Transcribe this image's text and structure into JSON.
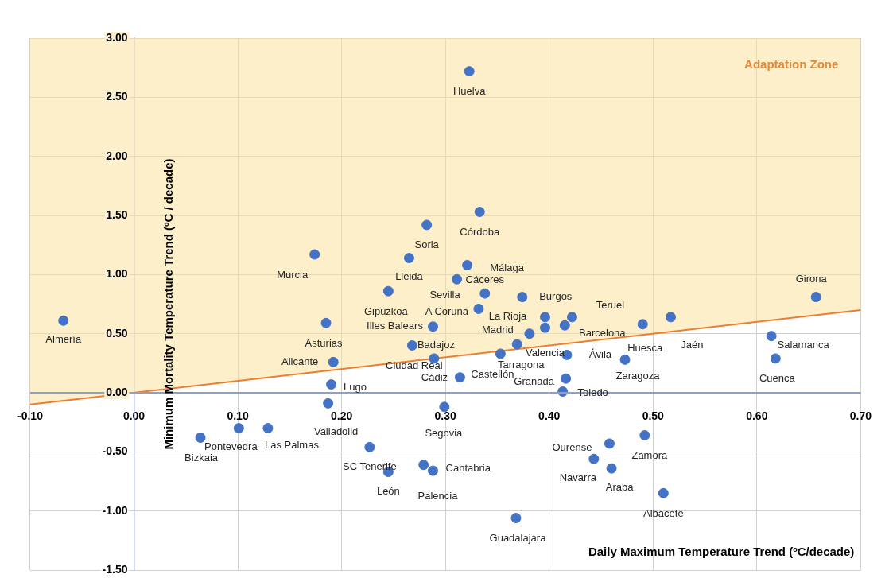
{
  "chart_data": {
    "type": "scatter",
    "xlabel": "Daily Maximum Temperature Trend (ºC/decade)",
    "ylabel": "Minimum Mortality Temperature Trend (ºC / decade)",
    "xlim": [
      -0.1,
      0.7
    ],
    "ylim": [
      -1.5,
      3.0
    ],
    "xticks": [
      {
        "value": -0.1,
        "label": "-0.10"
      },
      {
        "value": 0,
        "label": "0.00"
      },
      {
        "value": 0.1,
        "label": "0.10"
      },
      {
        "value": 0.2,
        "label": "0.20"
      },
      {
        "value": 0.3,
        "label": "0.30"
      },
      {
        "value": 0.4,
        "label": "0.40"
      },
      {
        "value": 0.5,
        "label": "0.50"
      },
      {
        "value": 0.6,
        "label": "0.60"
      },
      {
        "value": 0.7,
        "label": "0.70"
      }
    ],
    "yticks": [
      {
        "value": -1.5,
        "label": "-1.50"
      },
      {
        "value": -1,
        "label": "-1.00"
      },
      {
        "value": -0.5,
        "label": "-0.50"
      },
      {
        "value": 0,
        "label": "0.00"
      },
      {
        "value": 0.5,
        "label": "0.50"
      },
      {
        "value": 1,
        "label": "1.00"
      },
      {
        "value": 1.5,
        "label": "1.50"
      },
      {
        "value": 2,
        "label": "2.00"
      },
      {
        "value": 2.5,
        "label": "2.50"
      },
      {
        "value": 3,
        "label": "3.00"
      }
    ],
    "grid": true,
    "legend": false,
    "marker": "circle",
    "ref_lines": [
      {
        "axis": "y",
        "value": 0,
        "color": "#8ea0c4"
      }
    ],
    "series": [
      {
        "type": "scatter",
        "color": "#4472c4",
        "x": [
          -0.068,
          0.323,
          0.333,
          0.282,
          0.265,
          0.174,
          0.321,
          0.311,
          0.245,
          0.338,
          0.374,
          0.332,
          0.185,
          0.396,
          0.422,
          0.288,
          0.396,
          0.415,
          0.381,
          0.268,
          0.192,
          0.289,
          0.369,
          0.353,
          0.417,
          0.314,
          0.416,
          0.413,
          0.657,
          0.49,
          0.517,
          0.614,
          0.618,
          0.473,
          0.19,
          0.187,
          0.458,
          0.492,
          0.443,
          0.46,
          0.51,
          0.368,
          0.227,
          0.245,
          0.279,
          0.288,
          0.064,
          0.101,
          0.129,
          0.299
        ],
        "values": [
          0.61,
          2.72,
          1.53,
          1.42,
          1.14,
          1.17,
          1.08,
          0.96,
          0.86,
          0.84,
          0.81,
          0.71,
          0.59,
          0.64,
          0.64,
          0.56,
          0.55,
          0.57,
          0.5,
          0.4,
          0.26,
          0.29,
          0.41,
          0.33,
          0.32,
          0.13,
          0.12,
          0.01,
          0.81,
          0.58,
          0.64,
          0.48,
          0.29,
          0.28,
          0.07,
          -0.09,
          -0.43,
          -0.36,
          -0.56,
          -0.64,
          -0.85,
          -1.06,
          -0.46,
          -0.67,
          -0.61,
          -0.66,
          -0.38,
          -0.3,
          -0.3,
          -0.12
        ]
      },
      {
        "type": "line",
        "marker": "none",
        "color": "#ed7d31",
        "x": [
          -0.1,
          0.7
        ],
        "values": [
          -0.1,
          0.7
        ]
      }
    ],
    "annotations": [
      "Adaptation Zone",
      {
        "text": "Almería",
        "x": -0.068,
        "y": 0.61
      },
      {
        "text": "Huelva",
        "x": 0.323,
        "y": 2.72
      },
      {
        "text": "Córdoba",
        "x": 0.333,
        "y": 1.53
      },
      {
        "text": "Soria",
        "x": 0.282,
        "y": 1.42
      },
      {
        "text": "Lleida",
        "x": 0.265,
        "y": 1.14
      },
      {
        "text": "Murcia",
        "x": 0.174,
        "y": 1.17
      },
      {
        "text": "Málaga",
        "x": 0.321,
        "y": 1.08
      },
      {
        "text": "Sevilla",
        "x": 0.311,
        "y": 0.96
      },
      {
        "text": "Gipuzkoa",
        "x": 0.245,
        "y": 0.86
      },
      {
        "text": "Cáceres",
        "x": 0.338,
        "y": 0.84
      },
      {
        "text": "Burgos",
        "x": 0.374,
        "y": 0.81
      },
      {
        "text": "A Coruña",
        "x": 0.332,
        "y": 0.71
      },
      {
        "text": "Asturias",
        "x": 0.185,
        "y": 0.59
      },
      {
        "text": "La Rioja",
        "x": 0.396,
        "y": 0.64
      },
      {
        "text": "Teruel",
        "x": 0.422,
        "y": 0.64
      },
      {
        "text": "Illes Balears",
        "x": 0.288,
        "y": 0.56
      },
      {
        "text": "Valencia",
        "x": 0.396,
        "y": 0.55
      },
      {
        "text": "Barcelona",
        "x": 0.415,
        "y": 0.57
      },
      {
        "text": "Madrid",
        "x": 0.381,
        "y": 0.5
      },
      {
        "text": "Badajoz",
        "x": 0.268,
        "y": 0.4
      },
      {
        "text": "Alicante",
        "x": 0.192,
        "y": 0.26
      },
      {
        "text": "Ciudad Real",
        "x": 0.289,
        "y": 0.29
      },
      {
        "text": "Tarragona",
        "x": 0.369,
        "y": 0.41
      },
      {
        "text": "Castellón",
        "x": 0.353,
        "y": 0.33
      },
      {
        "text": "Ávila",
        "x": 0.417,
        "y": 0.32
      },
      {
        "text": "Cádiz",
        "x": 0.314,
        "y": 0.13
      },
      {
        "text": "Granada",
        "x": 0.416,
        "y": 0.12
      },
      {
        "text": "Toledo",
        "x": 0.413,
        "y": 0.01
      },
      {
        "text": "Girona",
        "x": 0.657,
        "y": 0.81
      },
      {
        "text": "Huesca",
        "x": 0.49,
        "y": 0.58
      },
      {
        "text": "Jaén",
        "x": 0.517,
        "y": 0.64
      },
      {
        "text": "Salamanca",
        "x": 0.614,
        "y": 0.48
      },
      {
        "text": "Cuenca",
        "x": 0.618,
        "y": 0.29
      },
      {
        "text": "Zaragoza",
        "x": 0.473,
        "y": 0.28
      },
      {
        "text": "Lugo",
        "x": 0.19,
        "y": 0.07
      },
      {
        "text": "Valladolid",
        "x": 0.187,
        "y": -0.09
      },
      {
        "text": "Ourense",
        "x": 0.458,
        "y": -0.43
      },
      {
        "text": "Zamora",
        "x": 0.492,
        "y": -0.36
      },
      {
        "text": "Navarra",
        "x": 0.443,
        "y": -0.56
      },
      {
        "text": "Araba",
        "x": 0.46,
        "y": -0.64
      },
      {
        "text": "Albacete",
        "x": 0.51,
        "y": -0.85
      },
      {
        "text": "Guadalajara",
        "x": 0.368,
        "y": -1.06
      },
      {
        "text": "SC Tenerife",
        "x": 0.227,
        "y": -0.46
      },
      {
        "text": "León",
        "x": 0.245,
        "y": -0.67
      },
      {
        "text": "Cantabria",
        "x": 0.279,
        "y": -0.61
      },
      {
        "text": "Palencia",
        "x": 0.288,
        "y": -0.66
      },
      {
        "text": "Bizkaia",
        "x": 0.064,
        "y": -0.38
      },
      {
        "text": "Pontevedra",
        "x": 0.101,
        "y": -0.3
      },
      {
        "text": "Las Palmas",
        "x": 0.129,
        "y": -0.3
      },
      {
        "text": "Segovia",
        "x": 0.299,
        "y": -0.12
      }
    ]
  }
}
